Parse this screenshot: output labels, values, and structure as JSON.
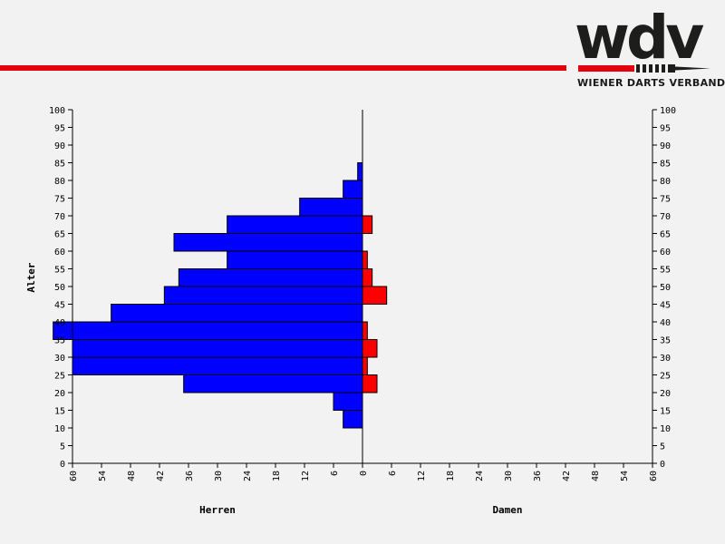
{
  "header": {
    "logo_word": "wdv",
    "logo_caption": "WIENER DARTS VERBAND",
    "colors": {
      "brand_red": "#e3000f",
      "brand_dark": "#1d1d1b"
    }
  },
  "chart_data": {
    "type": "bar",
    "orientation": "horizontal-population-pyramid",
    "ylabel": "Alter",
    "xlabel_left": "Herren",
    "xlabel_right": "Damen",
    "y_bins": [
      10,
      15,
      20,
      25,
      30,
      35,
      40,
      45,
      50,
      55,
      60,
      65,
      70,
      75,
      80
    ],
    "bin_width": 5,
    "ylim": [
      0,
      100
    ],
    "yticks": [
      0,
      5,
      10,
      15,
      20,
      25,
      30,
      35,
      40,
      45,
      50,
      55,
      60,
      65,
      70,
      75,
      80,
      85,
      90,
      95,
      100
    ],
    "xlim_each_side": 60,
    "xticks": [
      60,
      54,
      48,
      42,
      36,
      30,
      24,
      18,
      12,
      6,
      0,
      6,
      12,
      18,
      24,
      30,
      36,
      42,
      48,
      54,
      60
    ],
    "series": [
      {
        "name": "Herren",
        "color": "#0000ff",
        "side": "left",
        "values": [
          4,
          6,
          37,
          60,
          60,
          64,
          52,
          41,
          38,
          28,
          39,
          28,
          13,
          4,
          1
        ]
      },
      {
        "name": "Damen",
        "color": "#ff0000",
        "side": "right",
        "values": [
          0,
          0,
          3,
          1,
          3,
          1,
          0,
          5,
          2,
          1,
          0,
          2,
          0,
          0,
          0
        ]
      }
    ]
  }
}
